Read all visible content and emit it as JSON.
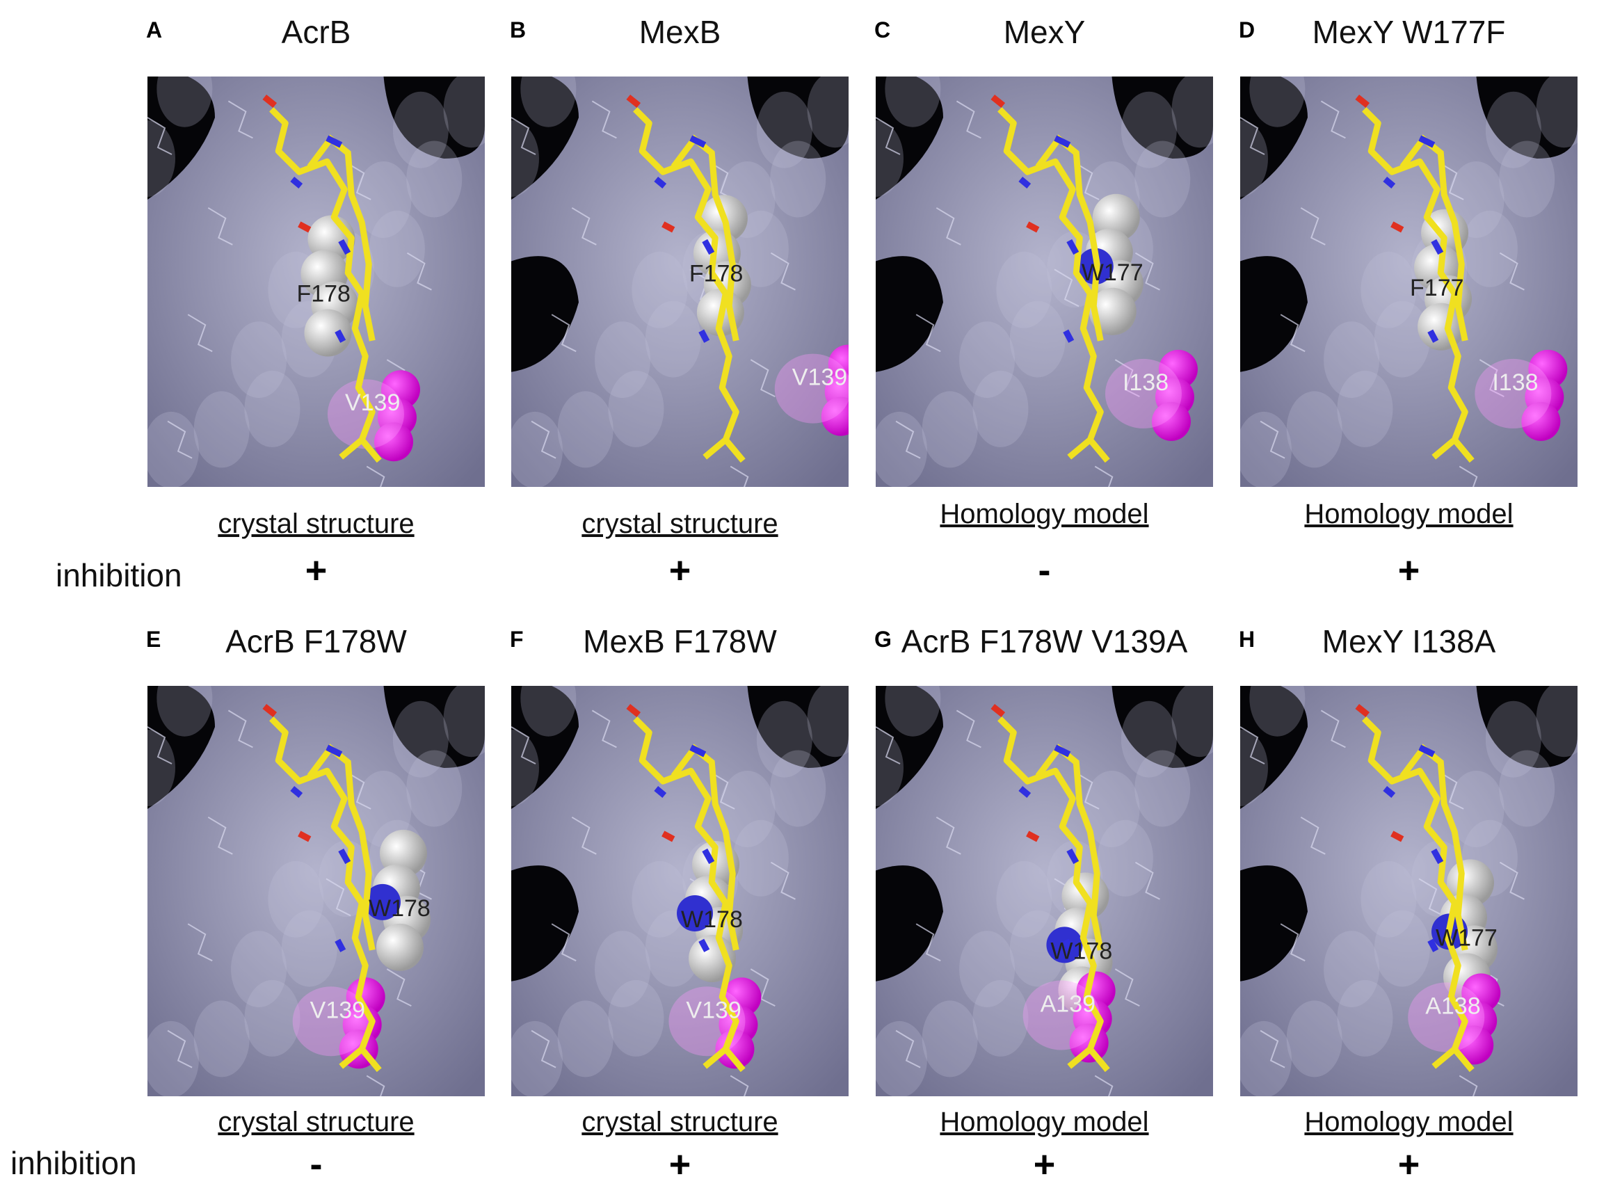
{
  "panels": [
    {
      "letter": "A",
      "title": "AcrB",
      "residues": [
        "F178",
        "V139"
      ],
      "method": "crystal structure",
      "inhibition": "+"
    },
    {
      "letter": "B",
      "title": "MexB",
      "residues": [
        "F178",
        "V139"
      ],
      "method": "crystal structure",
      "inhibition": "+"
    },
    {
      "letter": "C",
      "title": "MexY",
      "residues": [
        "W177",
        "I138"
      ],
      "method": "Homology model",
      "inhibition": "-"
    },
    {
      "letter": "D",
      "title": "MexY W177F",
      "residues": [
        "F177",
        "I138"
      ],
      "method": "Homology model",
      "inhibition": "+"
    },
    {
      "letter": "E",
      "title": "AcrB F178W",
      "residues": [
        "W178",
        "V139"
      ],
      "method": "crystal structure",
      "inhibition": "-"
    },
    {
      "letter": "F",
      "title": "MexB F178W",
      "residues": [
        "W178",
        "V139"
      ],
      "method": "crystal structure",
      "inhibition": "+"
    },
    {
      "letter": "G",
      "title": "AcrB F178W V139A",
      "residues": [
        "W178",
        "A139"
      ],
      "method": "Homology model",
      "inhibition": "+"
    },
    {
      "letter": "H",
      "title": "MexY I138A",
      "residues": [
        "W177",
        "A138"
      ],
      "method": "Homology model",
      "inhibition": "+"
    }
  ],
  "row_labels": [
    "inhibition",
    "inhibition"
  ]
}
